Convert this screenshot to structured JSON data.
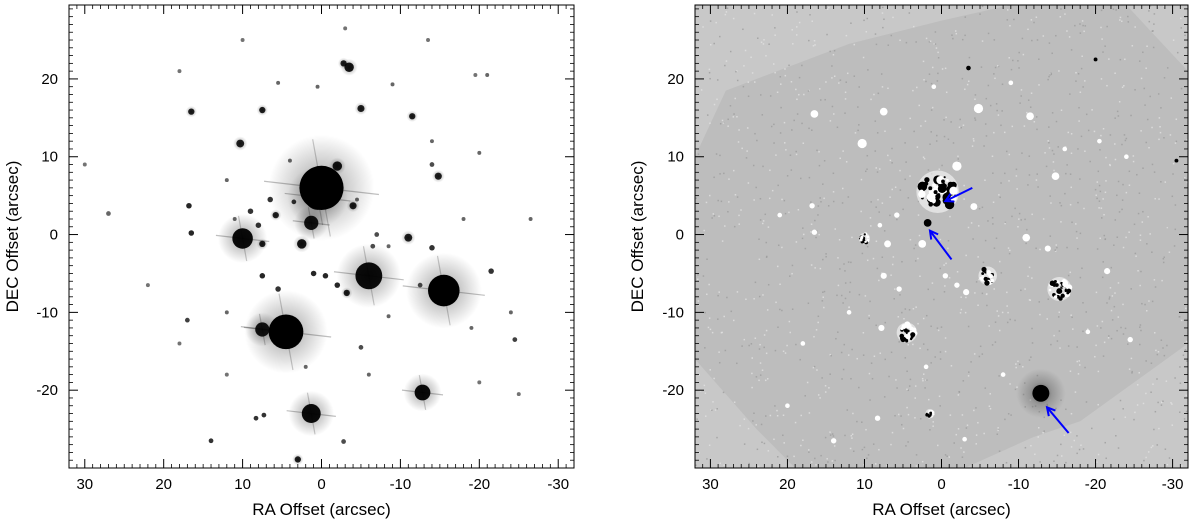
{
  "chart_data": [
    {
      "type": "scatter",
      "xlabel": "RA Offset (arcsec)",
      "ylabel": "DEC Offset (arcsec)",
      "xlim": [
        32,
        -32
      ],
      "ylim": [
        -30,
        29.5
      ],
      "xticks": [
        30,
        20,
        10,
        0,
        -10,
        -20,
        -30
      ],
      "yticks": [
        20,
        10,
        0,
        -10,
        -20
      ],
      "background": "#ffffff",
      "sources": [
        {
          "x": 0,
          "y": 6,
          "r": 2.8,
          "flux": 1.0
        },
        {
          "x": 0.5,
          "y": 4.8,
          "r": 1.6,
          "flux": 0.9
        },
        {
          "x": 4.5,
          "y": -12.5,
          "r": 2.2,
          "flux": 1.0
        },
        {
          "x": -15.5,
          "y": -7.2,
          "r": 2.0,
          "flux": 1.0
        },
        {
          "x": -6,
          "y": -5.3,
          "r": 1.7,
          "flux": 0.95
        },
        {
          "x": 10,
          "y": -0.5,
          "r": 1.3,
          "flux": 0.95
        },
        {
          "x": 1.3,
          "y": -23,
          "r": 1.2,
          "flux": 0.95
        },
        {
          "x": -12.8,
          "y": -20.3,
          "r": 1.0,
          "flux": 0.95
        },
        {
          "x": 7.5,
          "y": -12.2,
          "r": 0.9,
          "flux": 0.9
        },
        {
          "x": 1.3,
          "y": 1.5,
          "r": 0.9,
          "flux": 0.9
        },
        {
          "x": -2,
          "y": 8.8,
          "r": 0.6,
          "flux": 0.9
        },
        {
          "x": -3.5,
          "y": 21.5,
          "r": 0.6,
          "flux": 0.9
        },
        {
          "x": -2.8,
          "y": 22,
          "r": 0.4,
          "flux": 0.85
        },
        {
          "x": -5,
          "y": 16.2,
          "r": 0.45,
          "flux": 0.85
        },
        {
          "x": -11.5,
          "y": 15.2,
          "r": 0.4,
          "flux": 0.85
        },
        {
          "x": -14.8,
          "y": 7.5,
          "r": 0.45,
          "flux": 0.85
        },
        {
          "x": -14,
          "y": 9.0,
          "r": 0.3,
          "flux": 0.7
        },
        {
          "x": 10.3,
          "y": 11.7,
          "r": 0.5,
          "flux": 0.85
        },
        {
          "x": 16.5,
          "y": 15.8,
          "r": 0.4,
          "flux": 0.85
        },
        {
          "x": 7.5,
          "y": 16.0,
          "r": 0.4,
          "flux": 0.85
        },
        {
          "x": 16.8,
          "y": 3.7,
          "r": 0.35,
          "flux": 0.85
        },
        {
          "x": 16.5,
          "y": 0.2,
          "r": 0.35,
          "flux": 0.85
        },
        {
          "x": 8.0,
          "y": 1.2,
          "r": 0.35,
          "flux": 0.8
        },
        {
          "x": 9.0,
          "y": 3.0,
          "r": 0.35,
          "flux": 0.8
        },
        {
          "x": 5.8,
          "y": 2.5,
          "r": 0.4,
          "flux": 0.85
        },
        {
          "x": 6.5,
          "y": 4.5,
          "r": 0.35,
          "flux": 0.8
        },
        {
          "x": 3.5,
          "y": 4.2,
          "r": 0.3,
          "flux": 0.8
        },
        {
          "x": -4.0,
          "y": 3.7,
          "r": 0.45,
          "flux": 0.85
        },
        {
          "x": 7.5,
          "y": -1.2,
          "r": 0.4,
          "flux": 0.85
        },
        {
          "x": 2.5,
          "y": -1.2,
          "r": 0.6,
          "flux": 0.9
        },
        {
          "x": -11.0,
          "y": -0.4,
          "r": 0.5,
          "flux": 0.85
        },
        {
          "x": -14.0,
          "y": -1.7,
          "r": 0.35,
          "flux": 0.8
        },
        {
          "x": -7.0,
          "y": 0.0,
          "r": 0.3,
          "flux": 0.7
        },
        {
          "x": 7.5,
          "y": -5.3,
          "r": 0.35,
          "flux": 0.85
        },
        {
          "x": 5.5,
          "y": -7.0,
          "r": 0.35,
          "flux": 0.8
        },
        {
          "x": 1.0,
          "y": -5.0,
          "r": 0.35,
          "flux": 0.85
        },
        {
          "x": -0.5,
          "y": -5.3,
          "r": 0.35,
          "flux": 0.85
        },
        {
          "x": -2.0,
          "y": -6.5,
          "r": 0.35,
          "flux": 0.85
        },
        {
          "x": -3.2,
          "y": -7.5,
          "r": 0.4,
          "flux": 0.85
        },
        {
          "x": -21.5,
          "y": -4.7,
          "r": 0.35,
          "flux": 0.8
        },
        {
          "x": -24.5,
          "y": -13.5,
          "r": 0.3,
          "flux": 0.75
        },
        {
          "x": 17.0,
          "y": -11.0,
          "r": 0.3,
          "flux": 0.75
        },
        {
          "x": 8.3,
          "y": -23.6,
          "r": 0.3,
          "flux": 0.8
        },
        {
          "x": 7.3,
          "y": -23.2,
          "r": 0.3,
          "flux": 0.8
        },
        {
          "x": 14.0,
          "y": -26.5,
          "r": 0.3,
          "flux": 0.8
        },
        {
          "x": 3.0,
          "y": -28.9,
          "r": 0.4,
          "flux": 0.85
        },
        {
          "x": -2.8,
          "y": -26.6,
          "r": 0.3,
          "flux": 0.7
        },
        {
          "x": -12.5,
          "y": -6.5,
          "r": 0.3,
          "flux": 0.7
        },
        {
          "x": -6.5,
          "y": -1.5,
          "r": 0.3,
          "flux": 0.7
        },
        {
          "x": -8.5,
          "y": -1.5,
          "r": 0.25,
          "flux": 0.6
        },
        {
          "x": -4.5,
          "y": 4.5,
          "r": 0.25,
          "flux": 0.6
        },
        {
          "x": 4.0,
          "y": 9.5,
          "r": 0.25,
          "flux": 0.6
        },
        {
          "x": 12.0,
          "y": 7.0,
          "r": 0.25,
          "flux": 0.6
        },
        {
          "x": 11.0,
          "y": 2.0,
          "r": 0.25,
          "flux": 0.6
        },
        {
          "x": 5.5,
          "y": 19.5,
          "r": 0.25,
          "flux": 0.6
        },
        {
          "x": 0.5,
          "y": 19.0,
          "r": 0.25,
          "flux": 0.6
        },
        {
          "x": -9.0,
          "y": 19.3,
          "r": 0.25,
          "flux": 0.6
        },
        {
          "x": -21.0,
          "y": 20.5,
          "r": 0.25,
          "flux": 0.6
        },
        {
          "x": -14.0,
          "y": 12.0,
          "r": 0.25,
          "flux": 0.6
        },
        {
          "x": -20.0,
          "y": 10.5,
          "r": 0.25,
          "flux": 0.6
        },
        {
          "x": -18.0,
          "y": 2.0,
          "r": 0.25,
          "flux": 0.6
        },
        {
          "x": -26.5,
          "y": 2.0,
          "r": 0.25,
          "flux": 0.6
        },
        {
          "x": 27.0,
          "y": 2.7,
          "r": 0.3,
          "flux": 0.6
        },
        {
          "x": 30.0,
          "y": 9.0,
          "r": 0.25,
          "flux": 0.55
        },
        {
          "x": 22.0,
          "y": -6.5,
          "r": 0.25,
          "flux": 0.55
        },
        {
          "x": 18.0,
          "y": -14.0,
          "r": 0.25,
          "flux": 0.55
        },
        {
          "x": 12.0,
          "y": -10.0,
          "r": 0.25,
          "flux": 0.6
        },
        {
          "x": -5.0,
          "y": -14.5,
          "r": 0.3,
          "flux": 0.7
        },
        {
          "x": -8.5,
          "y": -10.5,
          "r": 0.25,
          "flux": 0.6
        },
        {
          "x": -19.0,
          "y": -12.0,
          "r": 0.25,
          "flux": 0.6
        },
        {
          "x": -24.0,
          "y": -10.0,
          "r": 0.25,
          "flux": 0.6
        },
        {
          "x": -6.0,
          "y": -18.0,
          "r": 0.25,
          "flux": 0.6
        },
        {
          "x": 2.0,
          "y": -17.0,
          "r": 0.25,
          "flux": 0.6
        },
        {
          "x": 12.0,
          "y": -18.0,
          "r": 0.25,
          "flux": 0.55
        },
        {
          "x": -20.0,
          "y": -19.0,
          "r": 0.25,
          "flux": 0.55
        },
        {
          "x": -25.0,
          "y": -20.5,
          "r": 0.25,
          "flux": 0.55
        },
        {
          "x": 18.0,
          "y": 21.0,
          "r": 0.25,
          "flux": 0.55
        },
        {
          "x": 10.0,
          "y": 25.0,
          "r": 0.25,
          "flux": 0.55
        },
        {
          "x": -3.0,
          "y": 26.5,
          "r": 0.25,
          "flux": 0.55
        },
        {
          "x": -13.5,
          "y": 25.0,
          "r": 0.25,
          "flux": 0.55
        },
        {
          "x": -19.5,
          "y": 20.5,
          "r": 0.25,
          "flux": 0.55
        }
      ]
    },
    {
      "type": "scatter",
      "xlabel": "RA Offset (arcsec)",
      "ylabel": "DEC Offset (arcsec)",
      "xlim": [
        32,
        -32
      ],
      "ylim": [
        -30,
        29.5
      ],
      "xticks": [
        30,
        20,
        10,
        0,
        -10,
        -20,
        -30
      ],
      "yticks": [
        20,
        10,
        0,
        -10,
        -20
      ],
      "background": "#c8c8c8",
      "footprint_color": "#bdbdbd",
      "footprint_ra_dec": [
        [
          32,
          10
        ],
        [
          28,
          18.5
        ],
        [
          12,
          24.5
        ],
        [
          0,
          27.5
        ],
        [
          -9,
          29.5
        ],
        [
          -24,
          29.5
        ],
        [
          -32,
          21
        ],
        [
          -32,
          -14
        ],
        [
          -25,
          -19
        ],
        [
          -18,
          -24
        ],
        [
          -12,
          -26
        ],
        [
          -3,
          -30
        ],
        [
          19,
          -30
        ],
        [
          24,
          -25
        ],
        [
          32,
          -16
        ]
      ],
      "residuals": [
        {
          "x": 0.5,
          "y": 5.5,
          "r": 2.3,
          "kind": "dipole"
        },
        {
          "x": 1.8,
          "y": 1.5,
          "r": 0.5,
          "kind": "dark"
        },
        {
          "x": 4.5,
          "y": -12.6,
          "r": 1.1,
          "kind": "dipole"
        },
        {
          "x": -15.3,
          "y": -7.0,
          "r": 1.3,
          "kind": "dipole"
        },
        {
          "x": -6.0,
          "y": -5.3,
          "r": 1.0,
          "kind": "dipole"
        },
        {
          "x": 10.0,
          "y": -0.5,
          "r": 0.6,
          "kind": "dipole"
        },
        {
          "x": 1.5,
          "y": -23.0,
          "r": 0.5,
          "kind": "dipole"
        },
        {
          "x": -12.9,
          "y": -20.4,
          "r": 2.0,
          "kind": "dark-halo"
        },
        {
          "x": -2.0,
          "y": 8.8,
          "r": 0.6,
          "kind": "bright"
        },
        {
          "x": 10.3,
          "y": 11.7,
          "r": 0.6,
          "kind": "bright"
        },
        {
          "x": 16.5,
          "y": 15.5,
          "r": 0.5,
          "kind": "bright"
        },
        {
          "x": -4.8,
          "y": 16.2,
          "r": 0.6,
          "kind": "bright"
        },
        {
          "x": -11.5,
          "y": 15.2,
          "r": 0.5,
          "kind": "bright"
        },
        {
          "x": -14.8,
          "y": 7.5,
          "r": 0.5,
          "kind": "bright"
        },
        {
          "x": 7.5,
          "y": 15.8,
          "r": 0.5,
          "kind": "bright"
        },
        {
          "x": 2.5,
          "y": -1.2,
          "r": 0.5,
          "kind": "bright"
        },
        {
          "x": 7.0,
          "y": -1.2,
          "r": 0.45,
          "kind": "bright"
        },
        {
          "x": -4.2,
          "y": 3.6,
          "r": 0.45,
          "kind": "bright"
        },
        {
          "x": -11.0,
          "y": -0.4,
          "r": 0.5,
          "kind": "bright"
        },
        {
          "x": -13.8,
          "y": -1.8,
          "r": 0.4,
          "kind": "bright"
        },
        {
          "x": 7.5,
          "y": -5.3,
          "r": 0.4,
          "kind": "bright"
        },
        {
          "x": 5.5,
          "y": -7.0,
          "r": 0.35,
          "kind": "bright"
        },
        {
          "x": -0.5,
          "y": -5.3,
          "r": 0.35,
          "kind": "bright"
        },
        {
          "x": -2.0,
          "y": -6.5,
          "r": 0.35,
          "kind": "bright"
        },
        {
          "x": -3.2,
          "y": -7.4,
          "r": 0.4,
          "kind": "bright"
        },
        {
          "x": -21.5,
          "y": -4.7,
          "r": 0.4,
          "kind": "bright"
        },
        {
          "x": -24.5,
          "y": -13.5,
          "r": 0.35,
          "kind": "bright"
        },
        {
          "x": 16.8,
          "y": 3.7,
          "r": 0.35,
          "kind": "bright"
        },
        {
          "x": 16.5,
          "y": 0.3,
          "r": 0.35,
          "kind": "bright"
        },
        {
          "x": 8.3,
          "y": -23.6,
          "r": 0.35,
          "kind": "bright"
        },
        {
          "x": 14.0,
          "y": -26.5,
          "r": 0.35,
          "kind": "bright"
        },
        {
          "x": 8.0,
          "y": 1.2,
          "r": 0.3,
          "kind": "bright"
        },
        {
          "x": 5.8,
          "y": 2.5,
          "r": 0.35,
          "kind": "bright"
        },
        {
          "x": -3.5,
          "y": 21.4,
          "r": 0.3,
          "kind": "dark"
        },
        {
          "x": 7.8,
          "y": -12.0,
          "r": 0.4,
          "kind": "bright"
        },
        {
          "x": 2.0,
          "y": -17.0,
          "r": 0.3,
          "kind": "bright"
        },
        {
          "x": -3.0,
          "y": -26.3,
          "r": 0.3,
          "kind": "bright"
        },
        {
          "x": -8.0,
          "y": -18.0,
          "r": 0.3,
          "kind": "bright"
        },
        {
          "x": 12.0,
          "y": -10.0,
          "r": 0.3,
          "kind": "bright"
        },
        {
          "x": 21.0,
          "y": 2.5,
          "r": 0.3,
          "kind": "bright"
        },
        {
          "x": -16.0,
          "y": 11.0,
          "r": 0.3,
          "kind": "bright"
        },
        {
          "x": -20.5,
          "y": 12.0,
          "r": 0.3,
          "kind": "bright"
        },
        {
          "x": -9.0,
          "y": 19.5,
          "r": 0.3,
          "kind": "bright"
        },
        {
          "x": 1.0,
          "y": 19.0,
          "r": 0.3,
          "kind": "bright"
        },
        {
          "x": -19.0,
          "y": -12.5,
          "r": 0.3,
          "kind": "bright"
        },
        {
          "x": 18.0,
          "y": -14.0,
          "r": 0.3,
          "kind": "bright"
        },
        {
          "x": -24.0,
          "y": 10.0,
          "r": 0.3,
          "kind": "bright"
        },
        {
          "x": 20.0,
          "y": -22.0,
          "r": 0.3,
          "kind": "bright"
        },
        {
          "x": -30.5,
          "y": 9.5,
          "r": 0.25,
          "kind": "dark"
        },
        {
          "x": -20.0,
          "y": 22.5,
          "r": 0.25,
          "kind": "dark"
        }
      ],
      "arrows": [
        {
          "from": [
            -4.0,
            6.0
          ],
          "to": [
            -0.5,
            4.3
          ],
          "color": "#0000ff"
        },
        {
          "from": [
            -1.3,
            -3.2
          ],
          "to": [
            1.5,
            0.5
          ],
          "color": "#0000ff"
        },
        {
          "from": [
            -16.5,
            -25.5
          ],
          "to": [
            -13.7,
            -22.2
          ],
          "color": "#0000ff"
        }
      ]
    }
  ]
}
